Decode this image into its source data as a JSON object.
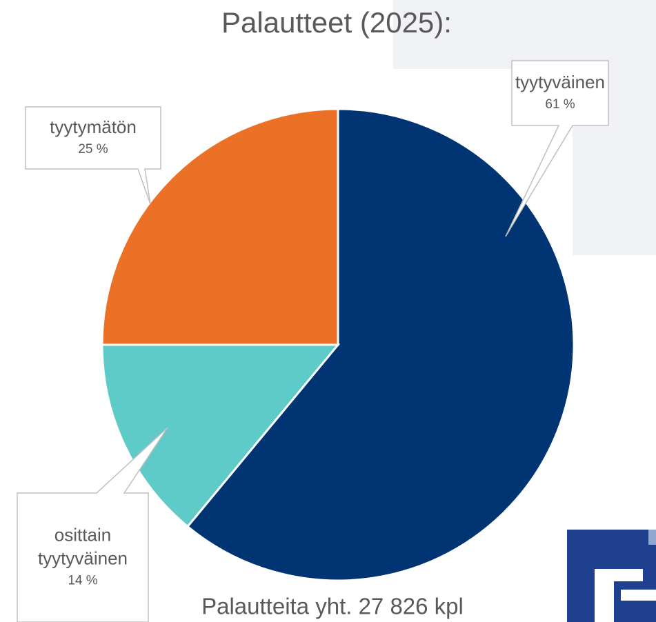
{
  "chart_data": {
    "type": "pie",
    "title": "Palautteet (2025):",
    "categories": [
      "tyytyväinen",
      "osittain tyytyväinen",
      "tyytymätön"
    ],
    "values": [
      61,
      14,
      25
    ],
    "value_labels": [
      "61 %",
      "14 %",
      "25 %"
    ],
    "colors": [
      "#003473",
      "#5ecbc8",
      "#ea7125"
    ],
    "annotation": "Palautteita yht. 27 826 kpl"
  }
}
